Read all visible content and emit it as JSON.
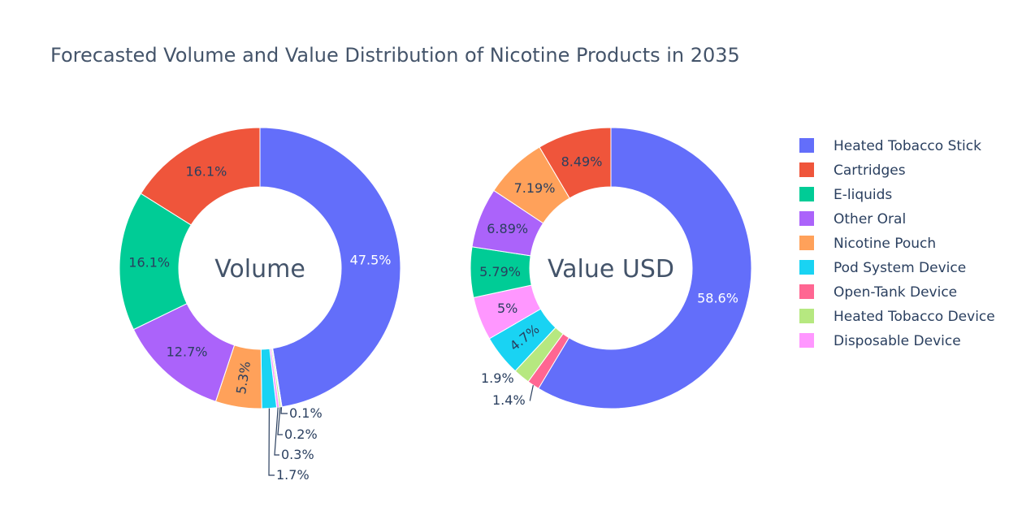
{
  "title": "Forecasted Volume and Value Distribution of Nicotine Products in 2035",
  "chart_data": {
    "type": "pie",
    "hole": true,
    "legend_position": "right",
    "categories": [
      "Heated Tobacco Stick",
      "Cartridges",
      "E-liquids",
      "Other Oral",
      "Nicotine Pouch",
      "Pod System Device",
      "Open-Tank Device",
      "Heated Tobacco Device",
      "Disposable Device"
    ],
    "colors": [
      "#636efa",
      "#ef553b",
      "#00cc96",
      "#ab63fa",
      "#ffa15a",
      "#19d3f3",
      "#ff6692",
      "#b6e880",
      "#ff97ff"
    ],
    "series": [
      {
        "name": "Volume",
        "slices": [
          {
            "label": "Heated Tobacco Stick",
            "value": 47.5,
            "text": "47.5%"
          },
          {
            "label": "Open-Tank Device",
            "value": 0.1,
            "text": "0.1%"
          },
          {
            "label": "Heated Tobacco Device",
            "value": 0.2,
            "text": "0.2%"
          },
          {
            "label": "Disposable Device",
            "value": 0.3,
            "text": "0.3%"
          },
          {
            "label": "Pod System Device",
            "value": 1.7,
            "text": "1.7%"
          },
          {
            "label": "Nicotine Pouch",
            "value": 5.3,
            "text": "5.3%"
          },
          {
            "label": "Other Oral",
            "value": 12.7,
            "text": "12.7%"
          },
          {
            "label": "E-liquids",
            "value": 16.1,
            "text": "16.1%"
          },
          {
            "label": "Cartridges",
            "value": 16.1,
            "text": "16.1%"
          }
        ]
      },
      {
        "name": "Value USD",
        "slices": [
          {
            "label": "Heated Tobacco Stick",
            "value": 58.6,
            "text": "58.6%"
          },
          {
            "label": "Open-Tank Device",
            "value": 1.4,
            "text": "1.4%"
          },
          {
            "label": "Heated Tobacco Device",
            "value": 1.9,
            "text": "1.9%"
          },
          {
            "label": "Pod System Device",
            "value": 4.7,
            "text": "4.7%"
          },
          {
            "label": "Disposable Device",
            "value": 5.0,
            "text": "5%"
          },
          {
            "label": "E-liquids",
            "value": 5.79,
            "text": "5.79%"
          },
          {
            "label": "Other Oral",
            "value": 6.89,
            "text": "6.89%"
          },
          {
            "label": "Nicotine Pouch",
            "value": 7.19,
            "text": "7.19%"
          },
          {
            "label": "Cartridges",
            "value": 8.49,
            "text": "8.49%"
          }
        ]
      }
    ]
  }
}
